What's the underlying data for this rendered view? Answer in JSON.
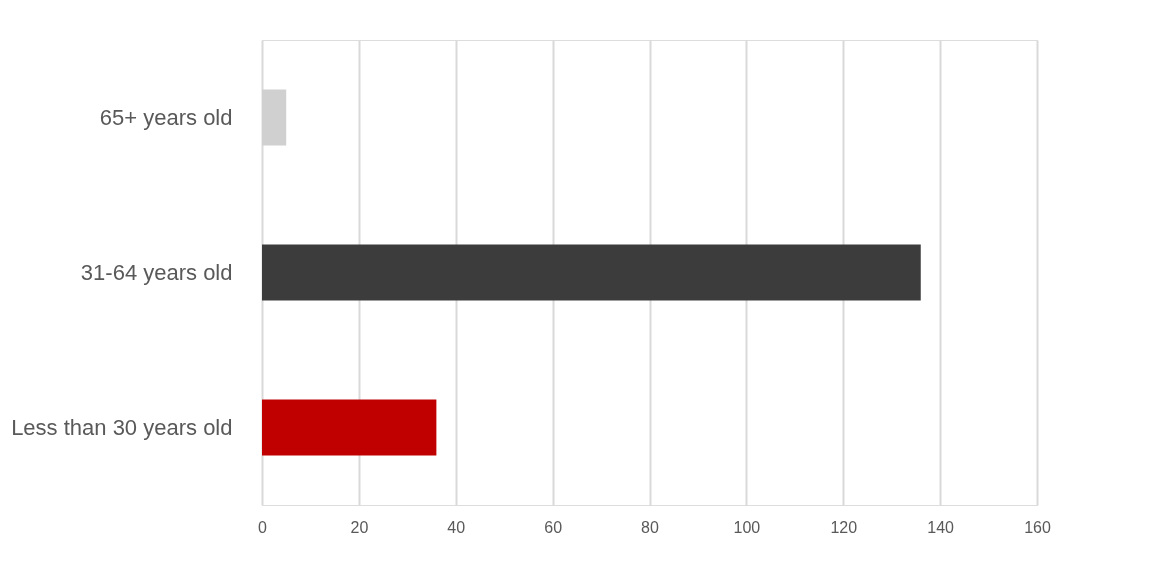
{
  "chart_data": {
    "type": "bar",
    "orientation": "horizontal",
    "categories": [
      "65+ years old",
      "31-64 years old",
      "Less than 30 years old"
    ],
    "values": [
      5,
      136,
      36
    ],
    "colors": [
      "#d0d0d0",
      "#3c3c3c",
      "#c00000"
    ],
    "xlim": [
      0,
      160
    ],
    "xticks": [
      0,
      20,
      40,
      60,
      80,
      100,
      120,
      140,
      160
    ],
    "grid": "x"
  }
}
